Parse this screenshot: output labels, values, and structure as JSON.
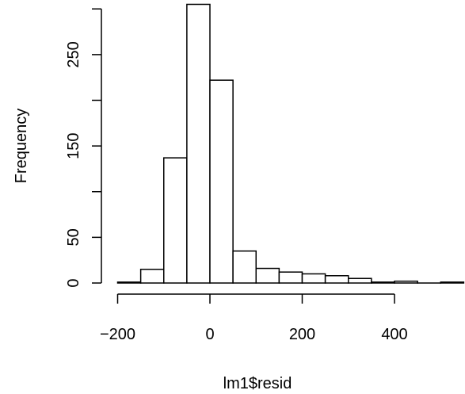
{
  "chart_data": {
    "type": "bar",
    "subtype": "histogram",
    "title": "",
    "xlabel": "lm1$resid",
    "ylabel": "Frequency",
    "bin_width": 50,
    "bins": [
      {
        "start": -200,
        "end": -150,
        "count": 1
      },
      {
        "start": -150,
        "end": -100,
        "count": 15
      },
      {
        "start": -100,
        "end": -50,
        "count": 137
      },
      {
        "start": -50,
        "end": 0,
        "count": 305
      },
      {
        "start": 0,
        "end": 50,
        "count": 222
      },
      {
        "start": 50,
        "end": 100,
        "count": 35
      },
      {
        "start": 100,
        "end": 150,
        "count": 16
      },
      {
        "start": 150,
        "end": 200,
        "count": 12
      },
      {
        "start": 200,
        "end": 250,
        "count": 10
      },
      {
        "start": 250,
        "end": 300,
        "count": 8
      },
      {
        "start": 300,
        "end": 350,
        "count": 5
      },
      {
        "start": 350,
        "end": 400,
        "count": 1
      },
      {
        "start": 400,
        "end": 450,
        "count": 2
      },
      {
        "start": 450,
        "end": 500,
        "count": 0
      },
      {
        "start": 500,
        "end": 550,
        "count": 1
      }
    ],
    "x_ticks": [
      {
        "value": -200,
        "label": "−200"
      },
      {
        "value": 0,
        "label": "0"
      },
      {
        "value": 200,
        "label": "200"
      },
      {
        "value": 400,
        "label": "400"
      }
    ],
    "y_ticks": [
      {
        "value": 0,
        "label": "0"
      },
      {
        "value": 50,
        "label": "50"
      },
      {
        "value": 150,
        "label": "150"
      },
      {
        "value": 250,
        "label": "250"
      }
    ],
    "y_minor_ticks": [
      100,
      200,
      300
    ],
    "x_axis_range": [
      -200,
      400
    ],
    "y_axis_range": [
      0,
      300
    ],
    "grid": false,
    "legend": "none"
  }
}
